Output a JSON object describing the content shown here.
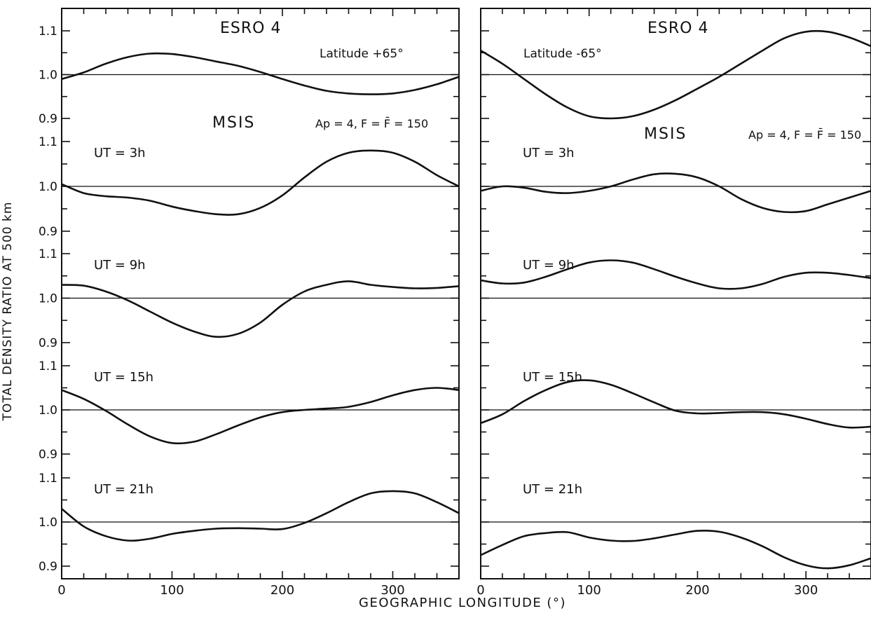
{
  "chart_data": {
    "type": "line",
    "xlabel": "GEOGRAPHIC LONGITUDE (°)",
    "ylabel": "TOTAL DENSITY RATIO AT 500 km",
    "xlim": [
      0,
      360
    ],
    "x_ticks": [
      "0",
      "100",
      "200",
      "300"
    ],
    "ylim": [
      0.9,
      1.1
    ],
    "y_ticks": [
      "0.9",
      "1.0",
      "1.1"
    ],
    "panels": [
      {
        "title": "ESRO 4",
        "latitude_label": "Latitude +65°",
        "model_label": "MSIS",
        "params_label": "Ap = 4,  F = F̄ = 150",
        "series": [
          {
            "name": "",
            "x": [
              0,
              20,
              40,
              60,
              80,
              100,
              120,
              140,
              160,
              180,
              200,
              220,
              240,
              260,
              280,
              300,
              320,
              340,
              360
            ],
            "values": [
              0.99,
              1.005,
              1.025,
              1.04,
              1.048,
              1.047,
              1.04,
              1.03,
              1.02,
              1.006,
              0.99,
              0.975,
              0.963,
              0.957,
              0.955,
              0.957,
              0.965,
              0.978,
              0.995
            ]
          },
          {
            "name": "UT = 3h",
            "x": [
              0,
              20,
              40,
              60,
              80,
              100,
              120,
              140,
              160,
              180,
              200,
              220,
              240,
              260,
              280,
              300,
              320,
              340,
              360
            ],
            "values": [
              1.005,
              0.985,
              0.978,
              0.975,
              0.968,
              0.955,
              0.945,
              0.938,
              0.938,
              0.952,
              0.98,
              1.02,
              1.055,
              1.075,
              1.08,
              1.075,
              1.055,
              1.025,
              1.0
            ]
          },
          {
            "name": "UT = 9h",
            "x": [
              0,
              20,
              40,
              60,
              80,
              100,
              120,
              140,
              160,
              180,
              200,
              220,
              240,
              260,
              280,
              300,
              320,
              340,
              360
            ],
            "values": [
              1.03,
              1.028,
              1.015,
              0.995,
              0.97,
              0.945,
              0.925,
              0.913,
              0.92,
              0.945,
              0.985,
              1.015,
              1.03,
              1.038,
              1.03,
              1.025,
              1.022,
              1.023,
              1.027
            ]
          },
          {
            "name": "UT = 15h",
            "x": [
              0,
              20,
              40,
              60,
              80,
              100,
              120,
              140,
              160,
              180,
              200,
              220,
              240,
              260,
              280,
              300,
              320,
              340,
              360
            ],
            "values": [
              1.045,
              1.025,
              0.998,
              0.967,
              0.94,
              0.925,
              0.928,
              0.945,
              0.965,
              0.983,
              0.995,
              1.0,
              1.003,
              1.007,
              1.018,
              1.033,
              1.045,
              1.05,
              1.045
            ]
          },
          {
            "name": "UT = 21h",
            "x": [
              0,
              20,
              40,
              60,
              80,
              100,
              120,
              140,
              160,
              180,
              200,
              220,
              240,
              260,
              280,
              300,
              320,
              340,
              360
            ],
            "values": [
              1.03,
              0.99,
              0.968,
              0.958,
              0.962,
              0.973,
              0.98,
              0.985,
              0.986,
              0.985,
              0.984,
              0.998,
              1.02,
              1.045,
              1.065,
              1.07,
              1.065,
              1.045,
              1.02
            ]
          }
        ]
      },
      {
        "title": "ESRO 4",
        "latitude_label": "Latitude -65°",
        "model_label": "MSIS",
        "params_label": "Ap = 4,  F = F̄ = 150",
        "series": [
          {
            "name": "",
            "x": [
              0,
              20,
              40,
              60,
              80,
              100,
              120,
              140,
              160,
              180,
              200,
              220,
              240,
              260,
              280,
              300,
              320,
              340,
              360
            ],
            "values": [
              1.055,
              1.025,
              0.99,
              0.955,
              0.925,
              0.905,
              0.9,
              0.905,
              0.92,
              0.942,
              0.968,
              0.995,
              1.025,
              1.055,
              1.083,
              1.098,
              1.098,
              1.085,
              1.065
            ]
          },
          {
            "name": "UT = 3h",
            "x": [
              0,
              20,
              40,
              60,
              80,
              100,
              120,
              140,
              160,
              180,
              200,
              220,
              240,
              260,
              280,
              300,
              320,
              340,
              360
            ],
            "values": [
              0.99,
              1.0,
              0.997,
              0.988,
              0.985,
              0.99,
              1.0,
              1.015,
              1.027,
              1.028,
              1.02,
              1.0,
              0.972,
              0.952,
              0.943,
              0.945,
              0.96,
              0.975,
              0.99
            ]
          },
          {
            "name": "UT = 9h",
            "x": [
              0,
              20,
              40,
              60,
              80,
              100,
              120,
              140,
              160,
              180,
              200,
              220,
              240,
              260,
              280,
              300,
              320,
              340,
              360
            ],
            "values": [
              1.04,
              1.033,
              1.035,
              1.048,
              1.065,
              1.08,
              1.085,
              1.08,
              1.065,
              1.048,
              1.033,
              1.022,
              1.022,
              1.032,
              1.048,
              1.057,
              1.057,
              1.052,
              1.045
            ]
          },
          {
            "name": "UT = 15h",
            "x": [
              0,
              20,
              40,
              60,
              80,
              100,
              120,
              140,
              160,
              180,
              200,
              220,
              240,
              260,
              280,
              300,
              320,
              340,
              360
            ],
            "values": [
              0.97,
              0.99,
              1.02,
              1.045,
              1.063,
              1.067,
              1.057,
              1.038,
              1.017,
              0.998,
              0.992,
              0.993,
              0.995,
              0.995,
              0.99,
              0.98,
              0.968,
              0.96,
              0.962
            ]
          },
          {
            "name": "UT = 21h",
            "x": [
              0,
              20,
              40,
              60,
              80,
              100,
              120,
              140,
              160,
              180,
              200,
              220,
              240,
              260,
              280,
              300,
              320,
              340,
              360
            ],
            "values": [
              0.925,
              0.948,
              0.968,
              0.975,
              0.977,
              0.965,
              0.958,
              0.957,
              0.963,
              0.972,
              0.98,
              0.978,
              0.965,
              0.945,
              0.92,
              0.902,
              0.895,
              0.902,
              0.918
            ]
          }
        ]
      }
    ]
  }
}
